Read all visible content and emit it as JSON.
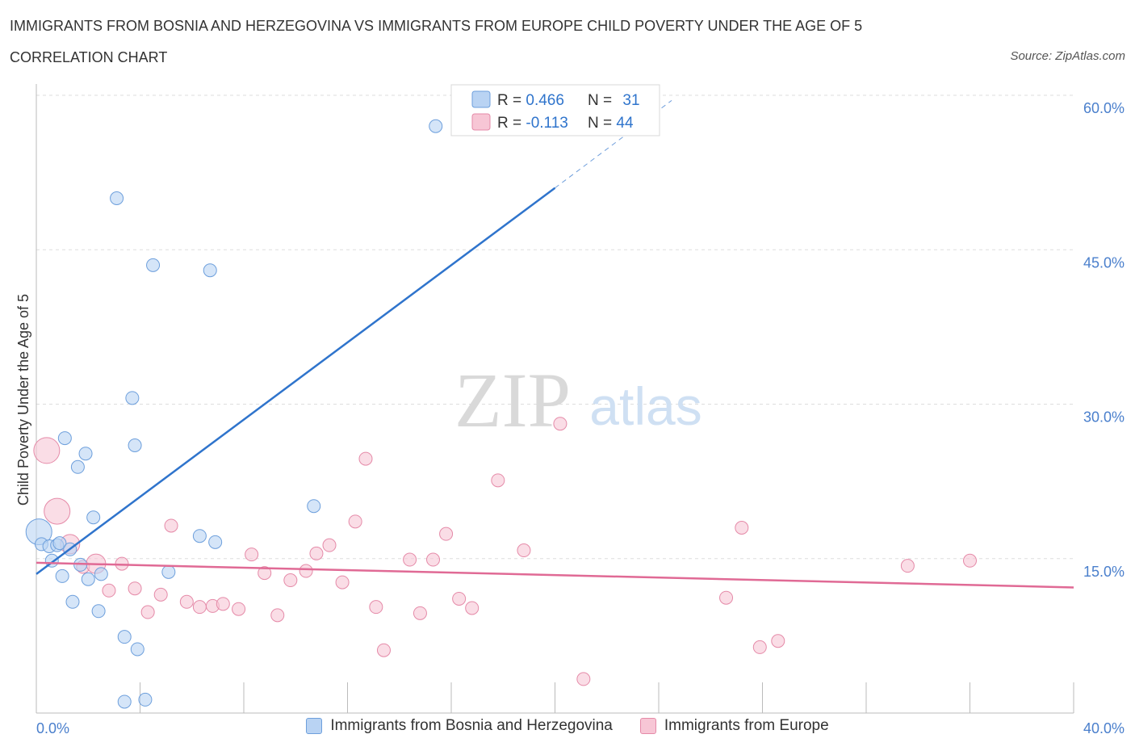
{
  "header": {
    "title": "IMMIGRANTS FROM BOSNIA AND HERZEGOVINA VS IMMIGRANTS FROM EUROPE CHILD POVERTY UNDER THE AGE OF 5",
    "subtitle": "CORRELATION CHART",
    "source": "Source: ZipAtlas.com"
  },
  "watermark": {
    "zip": "ZIP",
    "atlas": "atlas"
  },
  "stats_legend": {
    "r_label": "R = ",
    "n_label": "N = ",
    "rows": [
      {
        "r": "0.466",
        "n": "31"
      },
      {
        "r": "-0.113",
        "n": "44"
      }
    ]
  },
  "colors": {
    "blue_fill": "#b9d3f3",
    "blue_stroke": "#6d9fdc",
    "blue_line": "#2f74cc",
    "pink_fill": "#f7c6d5",
    "pink_stroke": "#e58aa8",
    "pink_line": "#e06a95",
    "axis_text": "#4a7fcc",
    "grid": "#dddddd"
  },
  "chart_data": {
    "type": "scatter",
    "title": "IMMIGRANTS FROM BOSNIA AND HERZEGOVINA VS IMMIGRANTS FROM EUROPE CHILD POVERTY UNDER THE AGE OF 5",
    "xlabel": "",
    "ylabel": "Child Poverty Under the Age of 5",
    "xlim": [
      0,
      40
    ],
    "ylim": [
      0,
      60
    ],
    "x_tick_labels": [
      "0.0%",
      "40.0%"
    ],
    "y_ticks": [
      15,
      30,
      45,
      60
    ],
    "y_tick_labels": [
      "15.0%",
      "30.0%",
      "45.0%",
      "60.0%"
    ],
    "legend_position": "bottom",
    "series": [
      {
        "name": "Immigrants from Bosnia and Herzegovina",
        "color": "blue",
        "R": 0.466,
        "N": 31,
        "trend": {
          "x1": 0,
          "y1": 13.5,
          "x2": 20.0,
          "y2": 51.0,
          "dash_to_x": 24.5,
          "dash_to_y": 59.5
        },
        "points": [
          {
            "x": 0.1,
            "y": 17.6,
            "s": 3
          },
          {
            "x": 0.2,
            "y": 16.4,
            "s": 1
          },
          {
            "x": 0.5,
            "y": 16.2,
            "s": 1
          },
          {
            "x": 0.6,
            "y": 14.8,
            "s": 1
          },
          {
            "x": 0.8,
            "y": 16.3,
            "s": 1
          },
          {
            "x": 0.9,
            "y": 16.5,
            "s": 1
          },
          {
            "x": 1.0,
            "y": 13.3,
            "s": 1
          },
          {
            "x": 1.1,
            "y": 26.7,
            "s": 1
          },
          {
            "x": 1.3,
            "y": 15.9,
            "s": 1
          },
          {
            "x": 1.4,
            "y": 10.8,
            "s": 1
          },
          {
            "x": 1.6,
            "y": 23.9,
            "s": 1
          },
          {
            "x": 1.7,
            "y": 14.4,
            "s": 1
          },
          {
            "x": 1.9,
            "y": 25.2,
            "s": 1
          },
          {
            "x": 2.0,
            "y": 13.0,
            "s": 1
          },
          {
            "x": 2.2,
            "y": 19.0,
            "s": 1
          },
          {
            "x": 2.4,
            "y": 9.9,
            "s": 1
          },
          {
            "x": 2.5,
            "y": 13.5,
            "s": 1
          },
          {
            "x": 3.1,
            "y": 50.0,
            "s": 1
          },
          {
            "x": 3.4,
            "y": 7.4,
            "s": 1
          },
          {
            "x": 3.4,
            "y": 1.1,
            "s": 1
          },
          {
            "x": 3.7,
            "y": 30.6,
            "s": 1
          },
          {
            "x": 3.8,
            "y": 26.0,
            "s": 1
          },
          {
            "x": 3.9,
            "y": 6.2,
            "s": 1
          },
          {
            "x": 4.2,
            "y": 1.3,
            "s": 1
          },
          {
            "x": 4.5,
            "y": 43.5,
            "s": 1
          },
          {
            "x": 5.1,
            "y": 13.7,
            "s": 1
          },
          {
            "x": 6.3,
            "y": 17.2,
            "s": 1
          },
          {
            "x": 6.7,
            "y": 43.0,
            "s": 1
          },
          {
            "x": 6.9,
            "y": 16.6,
            "s": 1
          },
          {
            "x": 10.7,
            "y": 20.1,
            "s": 1
          },
          {
            "x": 15.4,
            "y": 57.0,
            "s": 1
          }
        ]
      },
      {
        "name": "Immigrants from Europe",
        "color": "pink",
        "R": -0.113,
        "N": 44,
        "trend": {
          "x1": 0,
          "y1": 14.6,
          "x2": 40.0,
          "y2": 12.2
        },
        "points": [
          {
            "x": 0.4,
            "y": 25.5,
            "s": 3
          },
          {
            "x": 0.8,
            "y": 19.6,
            "s": 3
          },
          {
            "x": 1.3,
            "y": 16.4,
            "s": 2
          },
          {
            "x": 1.8,
            "y": 14.2,
            "s": 1
          },
          {
            "x": 2.3,
            "y": 14.5,
            "s": 2
          },
          {
            "x": 2.8,
            "y": 11.9,
            "s": 1
          },
          {
            "x": 3.3,
            "y": 14.5,
            "s": 1
          },
          {
            "x": 3.8,
            "y": 12.1,
            "s": 1
          },
          {
            "x": 4.3,
            "y": 9.8,
            "s": 1
          },
          {
            "x": 4.8,
            "y": 11.5,
            "s": 1
          },
          {
            "x": 5.2,
            "y": 18.2,
            "s": 1
          },
          {
            "x": 5.8,
            "y": 10.8,
            "s": 1
          },
          {
            "x": 6.3,
            "y": 10.3,
            "s": 1
          },
          {
            "x": 6.8,
            "y": 10.4,
            "s": 1
          },
          {
            "x": 7.2,
            "y": 10.6,
            "s": 1
          },
          {
            "x": 7.8,
            "y": 10.1,
            "s": 1
          },
          {
            "x": 8.3,
            "y": 15.4,
            "s": 1
          },
          {
            "x": 8.8,
            "y": 13.6,
            "s": 1
          },
          {
            "x": 9.3,
            "y": 9.5,
            "s": 1
          },
          {
            "x": 9.8,
            "y": 12.9,
            "s": 1
          },
          {
            "x": 10.4,
            "y": 13.8,
            "s": 1
          },
          {
            "x": 10.8,
            "y": 15.5,
            "s": 1
          },
          {
            "x": 11.3,
            "y": 16.3,
            "s": 1
          },
          {
            "x": 11.8,
            "y": 12.7,
            "s": 1
          },
          {
            "x": 12.3,
            "y": 18.6,
            "s": 1
          },
          {
            "x": 12.7,
            "y": 24.7,
            "s": 1
          },
          {
            "x": 13.1,
            "y": 10.3,
            "s": 1
          },
          {
            "x": 13.4,
            "y": 6.1,
            "s": 1
          },
          {
            "x": 14.4,
            "y": 14.9,
            "s": 1
          },
          {
            "x": 14.8,
            "y": 9.7,
            "s": 1
          },
          {
            "x": 15.3,
            "y": 14.9,
            "s": 1
          },
          {
            "x": 15.8,
            "y": 17.4,
            "s": 1
          },
          {
            "x": 16.3,
            "y": 11.1,
            "s": 1
          },
          {
            "x": 16.8,
            "y": 10.2,
            "s": 1
          },
          {
            "x": 17.8,
            "y": 22.6,
            "s": 1
          },
          {
            "x": 18.8,
            "y": 15.8,
            "s": 1
          },
          {
            "x": 20.2,
            "y": 28.1,
            "s": 1
          },
          {
            "x": 21.1,
            "y": 3.3,
            "s": 1
          },
          {
            "x": 26.6,
            "y": 11.2,
            "s": 1
          },
          {
            "x": 27.2,
            "y": 18.0,
            "s": 1
          },
          {
            "x": 27.9,
            "y": 6.4,
            "s": 1
          },
          {
            "x": 28.6,
            "y": 7.0,
            "s": 1
          },
          {
            "x": 33.6,
            "y": 14.3,
            "s": 1
          },
          {
            "x": 36.0,
            "y": 14.8,
            "s": 1
          }
        ]
      }
    ]
  }
}
